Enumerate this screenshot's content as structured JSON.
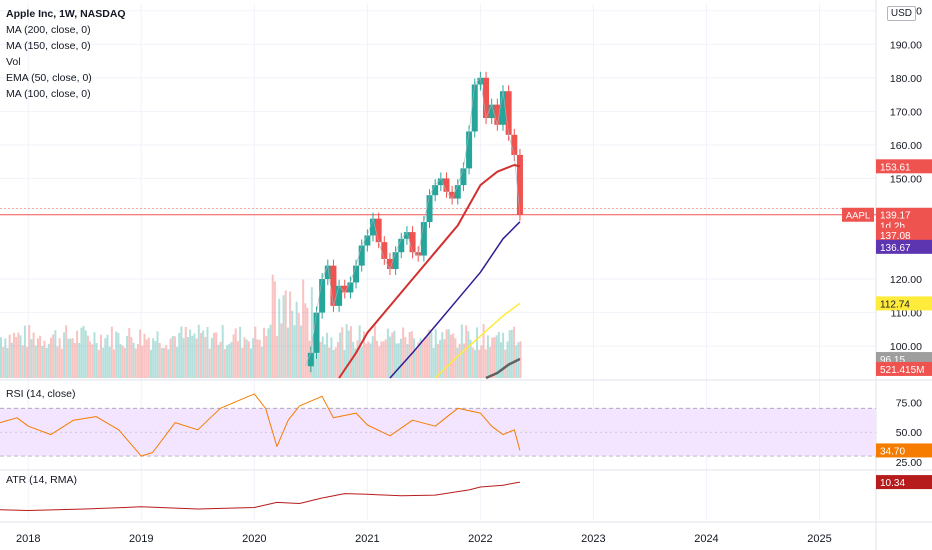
{
  "header": {
    "symbol_line": "Apple Inc, 1W, NASDAQ",
    "indicators": [
      "MA (200, close, 0)",
      "MA (150, close, 0)",
      "Vol",
      "EMA (50, close, 0)",
      "MA (100, close, 0)"
    ],
    "currency": "USD"
  },
  "rsi_label": "RSI (14, close)",
  "atr_label": "ATR (14, RMA)",
  "colors": {
    "up": "#26a69a",
    "down": "#ef5350",
    "ema50": "#d32f2f",
    "ma100": "#311b92",
    "ma150": "#ffeb3b",
    "ma200": "#616161",
    "rsi_line": "#f57c00",
    "rsi_band": "#f3e5ff",
    "atr_line": "#b71c1c"
  },
  "chart_data": [
    {
      "type": "line",
      "title": "Apple Inc, 1W, NASDAQ",
      "x_tick_labels": [
        "2018",
        "2019",
        "2020",
        "2021",
        "2022",
        "2023",
        "2024",
        "2025"
      ],
      "x_ticks": [
        2018,
        2019,
        2020,
        2021,
        2022,
        2023,
        2024,
        2025
      ],
      "xlim": [
        2017.75,
        2025.5
      ],
      "price_tick_labels": [
        "200.00",
        "190.00",
        "180.00",
        "170.00",
        "160.00",
        "150.00",
        "120.00",
        "110.00",
        "100.00"
      ],
      "price_ticks": [
        200,
        190,
        180,
        170,
        160,
        150,
        120,
        110,
        100
      ],
      "ylim": [
        90.5,
        202
      ],
      "price_series": {
        "name": "AAPL",
        "x": [
          2020.45,
          2020.5,
          2020.55,
          2020.6,
          2020.65,
          2020.7,
          2020.75,
          2020.8,
          2020.85,
          2020.9,
          2020.95,
          2021.0,
          2021.05,
          2021.1,
          2021.15,
          2021.2,
          2021.25,
          2021.3,
          2021.35,
          2021.4,
          2021.45,
          2021.5,
          2021.55,
          2021.6,
          2021.65,
          2021.7,
          2021.75,
          2021.8,
          2021.85,
          2021.9,
          2021.95,
          2022.0,
          2022.05,
          2022.1,
          2022.15,
          2022.2,
          2022.25,
          2022.3,
          2022.35
        ],
        "values": [
          94,
          98,
          110,
          120,
          124,
          112,
          118,
          116,
          119,
          124,
          130,
          133,
          138,
          131,
          126,
          123,
          128,
          132,
          134,
          128,
          127,
          137,
          145,
          148,
          150,
          146,
          144,
          148,
          153,
          164,
          178,
          180,
          168,
          172,
          166,
          176,
          163,
          157,
          139.17
        ]
      },
      "ema50": {
        "name": "EMA (50, close, 0)",
        "x": [
          2020.75,
          2020.9,
          2021.0,
          2021.2,
          2021.4,
          2021.6,
          2021.8,
          2022.0,
          2022.15,
          2022.3,
          2022.35
        ],
        "values": [
          90.5,
          98,
          104,
          112,
          120,
          128,
          136,
          148,
          152,
          154,
          153.61
        ]
      },
      "ma100": {
        "name": "MA (100, close, 0)",
        "x": [
          2021.2,
          2021.4,
          2021.6,
          2021.8,
          2022.0,
          2022.2,
          2022.35
        ],
        "values": [
          90.5,
          98,
          106,
          114,
          122,
          132,
          137.08
        ]
      },
      "ma150": {
        "name": "MA (150, close, 0)",
        "x": [
          2021.6,
          2021.8,
          2022.0,
          2022.2,
          2022.35
        ],
        "values": [
          90.5,
          97,
          103,
          109,
          112.74
        ]
      },
      "ma200": {
        "name": "MA (200, close, 0)",
        "x": [
          2022.05,
          2022.15,
          2022.25,
          2022.35
        ],
        "values": [
          90.5,
          92,
          94.5,
          96.15
        ]
      },
      "price_markers": [
        {
          "label": "153.61",
          "value": 153.61,
          "color": "#ef5350"
        },
        {
          "label": "AAPL",
          "value": 139.17,
          "color": "#ef5350"
        },
        {
          "label": "139.17",
          "value": 139.17,
          "color": "#ef5350"
        },
        {
          "label": "1d 2h",
          "value": 135.9,
          "color": "#ef5350"
        },
        {
          "label": "137.08",
          "value": 133.2,
          "color": "#ef5350"
        },
        {
          "label": "136.67",
          "value": 129.6,
          "color": "#5e35b1"
        },
        {
          "label": "112.74",
          "value": 112.74,
          "color": "#ffeb3b"
        },
        {
          "label": "96.15",
          "value": 96.15,
          "color": "#9e9e9e"
        },
        {
          "label": "521.415M",
          "value": 93.2,
          "color": "#ef5350"
        }
      ]
    },
    {
      "type": "line",
      "title": "RSI (14, close)",
      "tick_labels": [
        "75.00",
        "50.00",
        "25.00"
      ],
      "ticks": [
        75,
        50,
        25
      ],
      "ylim": [
        20,
        92
      ],
      "band": [
        30,
        70
      ],
      "series": [
        {
          "name": "RSI (14, close)",
          "x": [
            2017.75,
            2017.9,
            2018.0,
            2018.2,
            2018.4,
            2018.6,
            2018.8,
            2019.0,
            2019.1,
            2019.3,
            2019.5,
            2019.7,
            2019.9,
            2020.0,
            2020.1,
            2020.2,
            2020.3,
            2020.4,
            2020.6,
            2020.7,
            2020.9,
            2021.0,
            2021.2,
            2021.4,
            2021.6,
            2021.8,
            2022.0,
            2022.1,
            2022.2,
            2022.3,
            2022.35
          ],
          "values": [
            58,
            62,
            55,
            48,
            60,
            63,
            52,
            30,
            33,
            58,
            52,
            70,
            78,
            82,
            70,
            38,
            60,
            72,
            80,
            62,
            66,
            56,
            47,
            60,
            55,
            70,
            66,
            55,
            48,
            52,
            34.7
          ]
        }
      ],
      "last_value_label": "34.70"
    },
    {
      "type": "line",
      "title": "ATR (14, RMA)",
      "series": [
        {
          "name": "ATR (14, RMA)",
          "x": [
            2017.75,
            2018.0,
            2018.5,
            2019.0,
            2019.5,
            2020.0,
            2020.2,
            2020.4,
            2020.6,
            2020.8,
            2021.0,
            2021.3,
            2021.6,
            2021.9,
            2022.0,
            2022.2,
            2022.35
          ],
          "values": [
            2.8,
            2.6,
            3.0,
            3.6,
            3.0,
            3.4,
            4.8,
            4.5,
            6.0,
            7.2,
            7.0,
            6.6,
            6.8,
            8.2,
            9.0,
            9.5,
            10.34
          ]
        }
      ],
      "last_value_label": "10.34"
    }
  ]
}
